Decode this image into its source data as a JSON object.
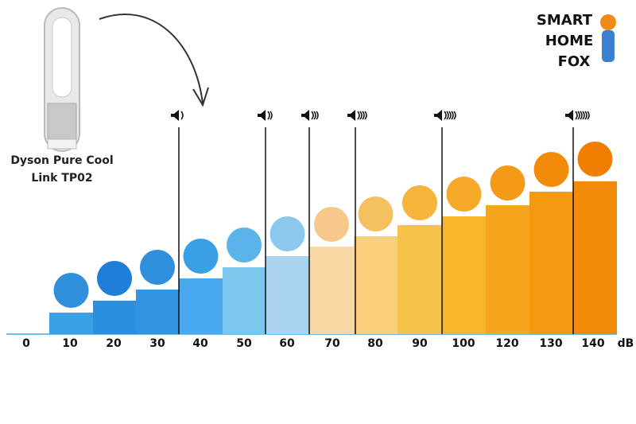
{
  "device": {
    "lines": [
      "Dyson Pure Cool",
      "Link TP02"
    ]
  },
  "logo": {
    "lines": [
      "SMART",
      "HOME",
      "FOX"
    ]
  },
  "scale": {
    "labels": [
      "0",
      "10",
      "20",
      "30",
      "40",
      "50",
      "60",
      "70",
      "80",
      "90",
      "100",
      "120",
      "130",
      "140"
    ],
    "unit": "dB"
  }
}
